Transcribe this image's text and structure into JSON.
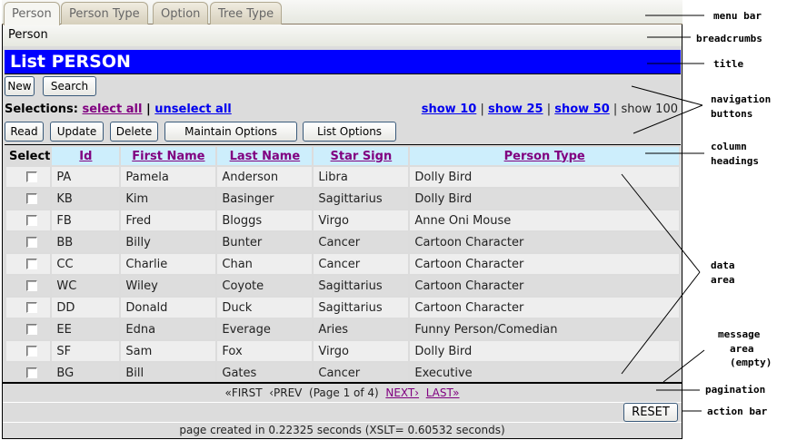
{
  "menu": {
    "tabs": [
      "Person",
      "Person Type",
      "Option",
      "Tree Type"
    ],
    "active": "Person"
  },
  "breadcrumbs": "Person",
  "title": "List PERSON",
  "nav": {
    "new": "New",
    "search": "Search"
  },
  "selections": {
    "label": "Selections:",
    "select_all": "select all",
    "sep": "|",
    "unselect_all": "unselect all"
  },
  "show": {
    "s10": "show 10",
    "s25": "show 25",
    "s50": "show 50",
    "s100": "show 100",
    "sep": "|"
  },
  "actions": {
    "read": "Read",
    "update": "Update",
    "delete": "Delete",
    "maintain": "Maintain Options",
    "list": "List Options"
  },
  "columns": [
    "Select",
    "Id",
    "First Name",
    "Last Name",
    "Star Sign",
    "Person Type"
  ],
  "rows": [
    [
      "PA",
      "Pamela",
      "Anderson",
      "Libra",
      "Dolly Bird"
    ],
    [
      "KB",
      "Kim",
      "Basinger",
      "Sagittarius",
      "Dolly Bird"
    ],
    [
      "FB",
      "Fred",
      "Bloggs",
      "Virgo",
      "Anne Oni Mouse"
    ],
    [
      "BB",
      "Billy",
      "Bunter",
      "Cancer",
      "Cartoon Character"
    ],
    [
      "CC",
      "Charlie",
      "Chan",
      "Cancer",
      "Cartoon Character"
    ],
    [
      "WC",
      "Wiley",
      "Coyote",
      "Sagittarius",
      "Cartoon Character"
    ],
    [
      "DD",
      "Donald",
      "Duck",
      "Sagittarius",
      "Cartoon Character"
    ],
    [
      "EE",
      "Edna",
      "Everage",
      "Aries",
      "Funny Person/Comedian"
    ],
    [
      "SF",
      "Sam",
      "Fox",
      "Virgo",
      "Dolly Bird"
    ],
    [
      "BG",
      "Bill",
      "Gates",
      "Cancer",
      "Executive"
    ]
  ],
  "pagination": {
    "first": "«FIRST",
    "prev": "‹PREV",
    "page": "(Page 1 of 4)",
    "next": "NEXT›",
    "last": "LAST»"
  },
  "action_bar": {
    "reset": "RESET"
  },
  "footer": "page created in 0.22325 seconds (XSLT= 0.60532 seconds)",
  "annotations": {
    "menu_bar": "menu bar",
    "breadcrumbs": "breadcrumbs",
    "title": "title",
    "navigation_1": "navigation",
    "navigation_2": "buttons",
    "column_1": "column",
    "column_2": "headings",
    "data_1": "data",
    "data_2": "area",
    "message_1": "message",
    "message_2": "area",
    "message_3": "(empty)",
    "pagination": "pagination",
    "action_bar": "action bar"
  }
}
